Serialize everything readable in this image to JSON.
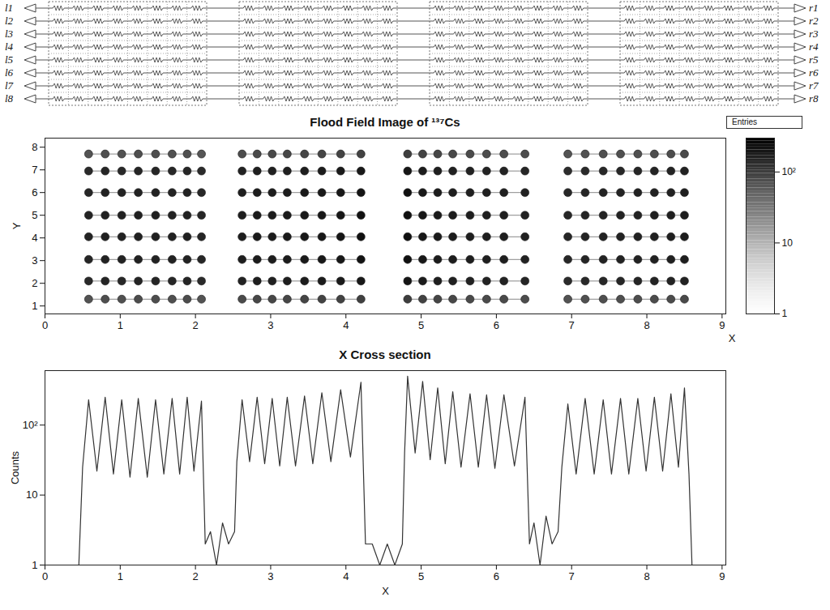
{
  "diagram": {
    "left_labels": [
      "l1",
      "l2",
      "l3",
      "l4",
      "l5",
      "l6",
      "l7",
      "l8"
    ],
    "right_labels": [
      "r1",
      "r2",
      "r3",
      "r4",
      "r5",
      "r6",
      "r7",
      "r8"
    ],
    "modules": 4,
    "resistors_per_module": 8
  },
  "chart_data": [
    {
      "type": "heatmap",
      "title": "Flood Field Image of ¹³⁷Cs",
      "x_label": "X",
      "y_label": "Y",
      "stats_label": "Entries",
      "x": [
        0.58,
        0.8,
        1.02,
        1.24,
        1.47,
        1.69,
        1.89,
        2.08,
        2.62,
        2.82,
        3.02,
        3.22,
        3.45,
        3.68,
        3.93,
        4.2,
        4.82,
        5.02,
        5.22,
        5.42,
        5.65,
        5.87,
        6.1,
        6.38,
        6.95,
        7.18,
        7.42,
        7.65,
        7.88,
        8.1,
        8.32,
        8.5
      ],
      "y": [
        1.3,
        2.1,
        3.05,
        4.05,
        5.0,
        6.0,
        6.95,
        7.7
      ],
      "values": [
        [
          70,
          75,
          72,
          78,
          76,
          74,
          77,
          68,
          80,
          85,
          84,
          86,
          88,
          90,
          92,
          95,
          100,
          92,
          88,
          85,
          82,
          80,
          80,
          78,
          70,
          72,
          74,
          75,
          76,
          77,
          79,
          82
        ],
        [
          140,
          150,
          145,
          152,
          150,
          148,
          150,
          138,
          160,
          170,
          165,
          170,
          175,
          180,
          185,
          190,
          200,
          180,
          170,
          165,
          160,
          158,
          156,
          150,
          135,
          140,
          145,
          148,
          150,
          152,
          155,
          160
        ],
        [
          150,
          160,
          155,
          162,
          160,
          158,
          160,
          148,
          170,
          180,
          175,
          180,
          185,
          190,
          195,
          210,
          220,
          190,
          180,
          175,
          170,
          168,
          166,
          160,
          145,
          150,
          155,
          158,
          160,
          162,
          165,
          170
        ],
        [
          155,
          165,
          160,
          165,
          165,
          162,
          164,
          150,
          175,
          185,
          180,
          185,
          190,
          195,
          200,
          215,
          225,
          195,
          185,
          178,
          172,
          170,
          168,
          162,
          148,
          152,
          158,
          160,
          162,
          165,
          168,
          175
        ],
        [
          152,
          162,
          158,
          164,
          163,
          160,
          162,
          149,
          172,
          182,
          178,
          183,
          188,
          192,
          198,
          212,
          222,
          192,
          182,
          176,
          170,
          168,
          166,
          160,
          146,
          150,
          156,
          158,
          160,
          163,
          166,
          172
        ],
        [
          148,
          158,
          153,
          160,
          158,
          156,
          158,
          146,
          168,
          178,
          173,
          178,
          183,
          188,
          193,
          205,
          215,
          188,
          178,
          172,
          168,
          165,
          163,
          158,
          142,
          148,
          152,
          155,
          158,
          160,
          162,
          168
        ],
        [
          138,
          148,
          143,
          150,
          148,
          146,
          148,
          136,
          158,
          168,
          163,
          168,
          172,
          178,
          182,
          188,
          198,
          178,
          168,
          162,
          158,
          155,
          153,
          148,
          132,
          138,
          142,
          145,
          148,
          150,
          152,
          158
        ],
        [
          68,
          72,
          70,
          75,
          74,
          72,
          74,
          66,
          78,
          82,
          82,
          84,
          86,
          88,
          90,
          92,
          98,
          90,
          86,
          83,
          80,
          78,
          78,
          76,
          68,
          70,
          72,
          73,
          74,
          75,
          77,
          80
        ]
      ],
      "xlim": [
        0,
        9.05
      ],
      "xticks": [
        0,
        1,
        2,
        3,
        4,
        5,
        6,
        7,
        8,
        9
      ],
      "ylim": [
        0.65,
        8.4
      ],
      "yticks": [
        1,
        2,
        3,
        4,
        5,
        6,
        7,
        8
      ],
      "colorbar_range": [
        1,
        300
      ],
      "colorbar_ticks": [
        1,
        10,
        {
          "value": 100,
          "label": "10²"
        }
      ]
    },
    {
      "type": "line",
      "title": "X Cross section",
      "x_label": "X",
      "y_label": "Counts",
      "color": "#333333",
      "log": "y",
      "x": [
        0.45,
        0.5,
        0.58,
        0.69,
        0.8,
        0.91,
        1.02,
        1.13,
        1.24,
        1.36,
        1.47,
        1.58,
        1.69,
        1.79,
        1.89,
        1.98,
        2.08,
        2.13,
        2.2,
        2.28,
        2.36,
        2.44,
        2.52,
        2.55,
        2.62,
        2.72,
        2.82,
        2.92,
        3.02,
        3.12,
        3.22,
        3.33,
        3.45,
        3.56,
        3.68,
        3.8,
        3.93,
        4.06,
        4.2,
        4.26,
        4.35,
        4.45,
        4.55,
        4.65,
        4.75,
        4.78,
        4.82,
        4.92,
        5.02,
        5.12,
        5.22,
        5.32,
        5.42,
        5.53,
        5.65,
        5.76,
        5.87,
        5.98,
        6.1,
        6.24,
        6.38,
        6.44,
        6.5,
        6.58,
        6.66,
        6.74,
        6.82,
        6.87,
        6.95,
        7.06,
        7.18,
        7.3,
        7.42,
        7.53,
        7.65,
        7.76,
        7.88,
        7.99,
        8.1,
        8.21,
        8.32,
        8.42,
        8.5,
        8.56,
        8.6
      ],
      "values": [
        1,
        25,
        230,
        22,
        250,
        20,
        230,
        18,
        240,
        18,
        230,
        20,
        240,
        20,
        250,
        22,
        220,
        2,
        3,
        1,
        4,
        2,
        3,
        30,
        230,
        30,
        250,
        28,
        240,
        26,
        250,
        26,
        260,
        28,
        290,
        30,
        320,
        35,
        410,
        2,
        2,
        1,
        2,
        1,
        2,
        40,
        500,
        40,
        420,
        32,
        340,
        28,
        300,
        25,
        280,
        25,
        270,
        24,
        270,
        26,
        250,
        2,
        4,
        1,
        5,
        2,
        3,
        25,
        200,
        20,
        240,
        20,
        230,
        20,
        240,
        20,
        240,
        22,
        250,
        22,
        280,
        25,
        340,
        20,
        1
      ],
      "xlim": [
        0,
        9.05
      ],
      "xticks": [
        0,
        1,
        2,
        3,
        4,
        5,
        6,
        7,
        8,
        9
      ],
      "ylim": [
        1,
        600
      ],
      "yticks": [
        1,
        10,
        {
          "value": 100,
          "label": "10²"
        }
      ]
    }
  ]
}
